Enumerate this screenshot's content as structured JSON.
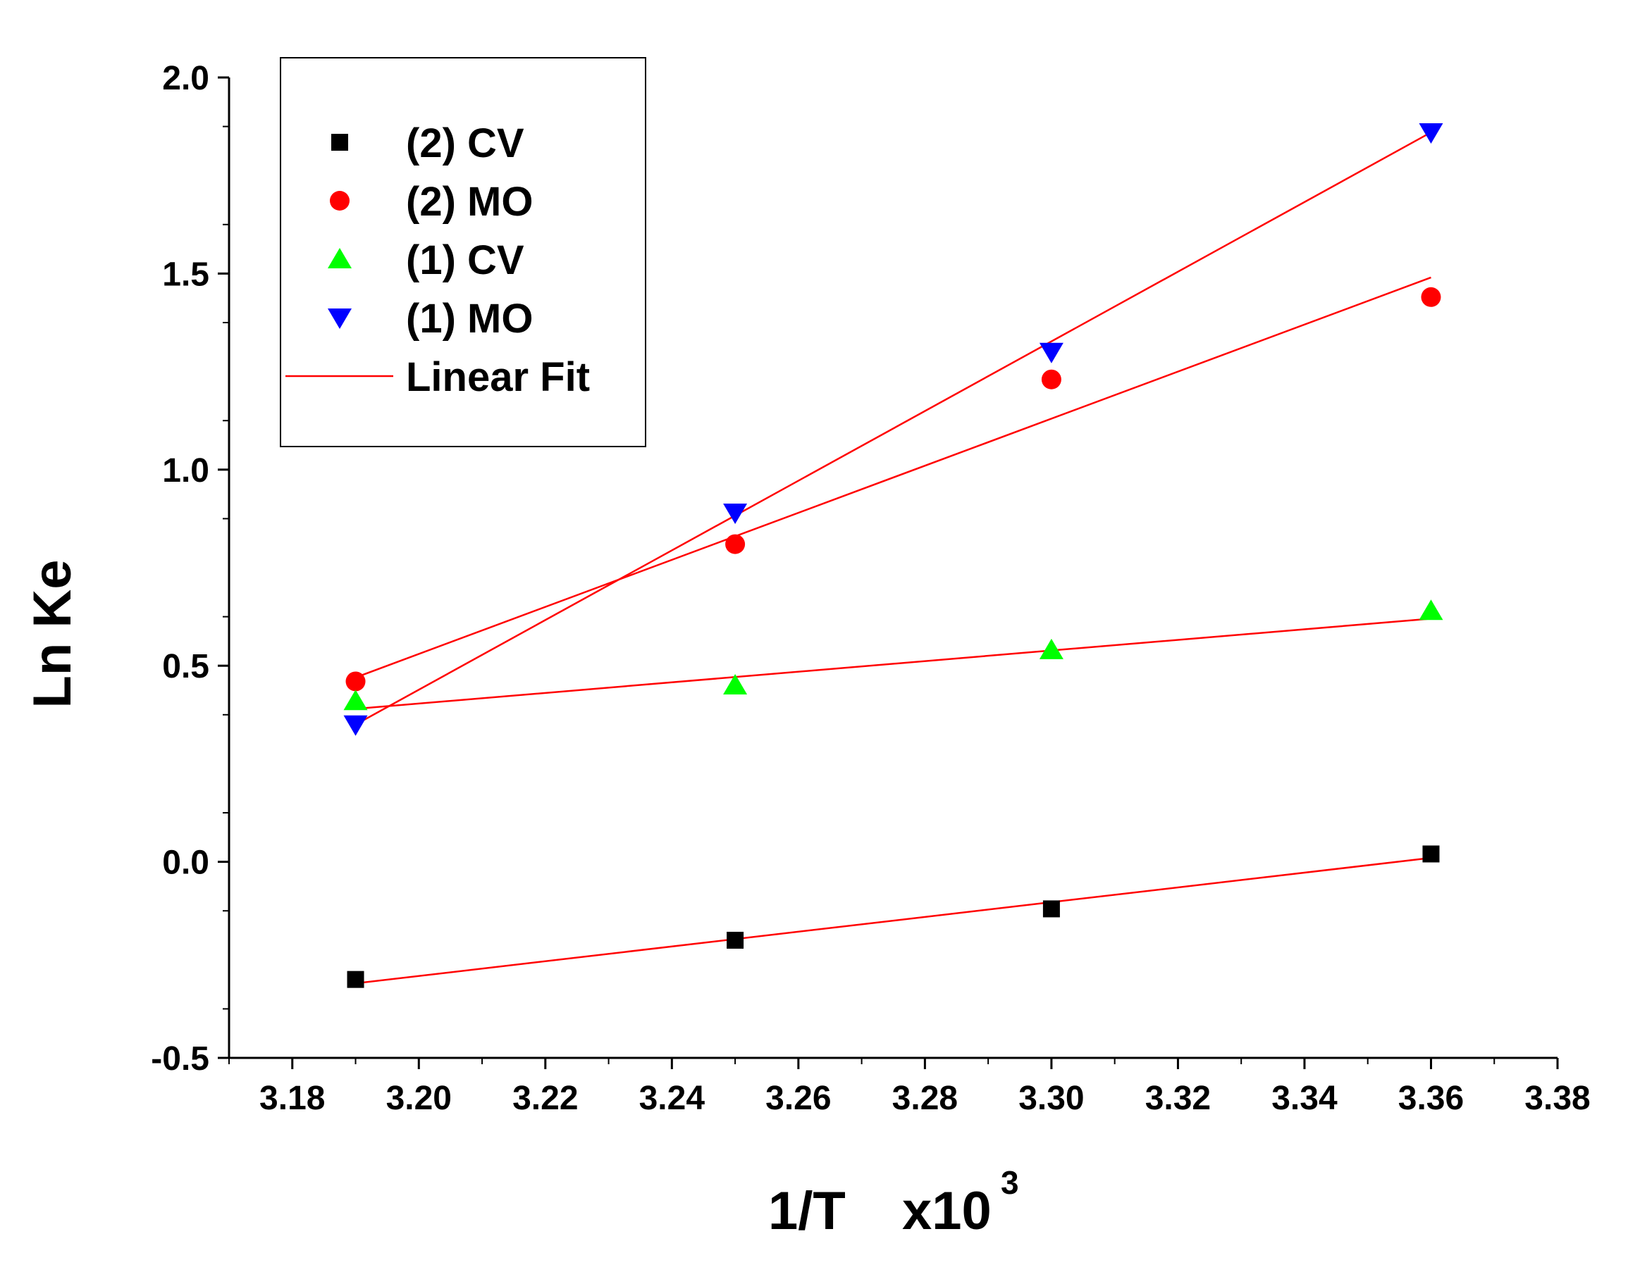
{
  "chart_data": {
    "type": "scatter",
    "xlabel": "1/T",
    "xlabel_suffix": "x10",
    "xlabel_exponent": "3",
    "ylabel": "Ln Ke",
    "xlim": [
      3.17,
      3.38
    ],
    "ylim": [
      -0.5,
      2.0
    ],
    "x_ticks": [
      3.18,
      3.2,
      3.22,
      3.24,
      3.26,
      3.28,
      3.3,
      3.32,
      3.34,
      3.36,
      3.38
    ],
    "x_tick_labels": [
      "3.18",
      "3.20",
      "3.22",
      "3.24",
      "3.26",
      "3.28",
      "3.30",
      "3.32",
      "3.34",
      "3.36",
      "3.38"
    ],
    "y_ticks": [
      -0.5,
      0.0,
      0.5,
      1.0,
      1.5,
      2.0
    ],
    "y_tick_labels": [
      "-0.5",
      "0.0",
      "0.5",
      "1.0",
      "1.5",
      "2.0"
    ],
    "grid": false,
    "legend_position": "top-left",
    "series": [
      {
        "name": "(2) CV",
        "marker": "square",
        "color": "#000000",
        "x": [
          3.19,
          3.25,
          3.3,
          3.36
        ],
        "y": [
          -0.3,
          -0.2,
          -0.12,
          0.02
        ],
        "fit": [
          -0.31,
          0.01
        ]
      },
      {
        "name": "(2) MO",
        "marker": "circle",
        "color": "#ff0000",
        "x": [
          3.19,
          3.25,
          3.3,
          3.36
        ],
        "y": [
          0.46,
          0.81,
          1.23,
          1.44
        ],
        "fit": [
          0.47,
          1.49
        ]
      },
      {
        "name": "(1) CV",
        "marker": "triangle-up",
        "color": "#00ff00",
        "x": [
          3.19,
          3.25,
          3.3,
          3.36
        ],
        "y": [
          0.41,
          0.45,
          0.54,
          0.64
        ],
        "fit": [
          0.39,
          0.62
        ]
      },
      {
        "name": "(1) MO",
        "marker": "triangle-down",
        "color": "#0000ff",
        "x": [
          3.19,
          3.25,
          3.3,
          3.36
        ],
        "y": [
          0.35,
          0.89,
          1.3,
          1.86
        ],
        "fit": [
          0.35,
          1.86
        ]
      }
    ],
    "fit_legend": {
      "name": "Linear Fit",
      "color": "#ff0000"
    }
  }
}
